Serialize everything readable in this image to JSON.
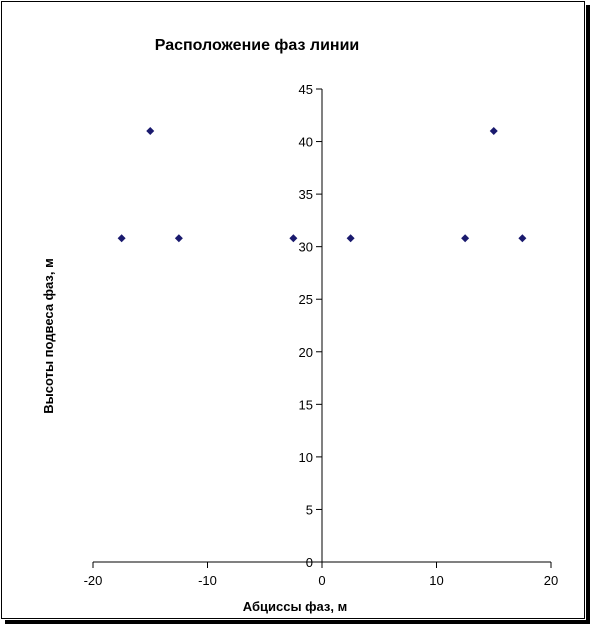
{
  "chart_data": {
    "type": "scatter",
    "title": "Расположение фаз линии",
    "xlabel": "Абциссы фаз, м",
    "ylabel": "Высоты подвеса фаз, м",
    "xlim": [
      -20,
      20
    ],
    "ylim": [
      0,
      45
    ],
    "xticks": [
      -20,
      -10,
      0,
      10,
      20
    ],
    "yticks": [
      0,
      5,
      10,
      15,
      20,
      25,
      30,
      35,
      40,
      45
    ],
    "series": [
      {
        "x": [
          -17.5,
          -15,
          -12.5,
          -2.5,
          2.5,
          12.5,
          15,
          17.5
        ],
        "y": [
          30.8,
          41,
          30.8,
          30.8,
          30.8,
          30.8,
          41,
          30.8
        ],
        "marker": "diamond",
        "color": "#1a1a6e"
      }
    ],
    "grid": false,
    "legend": "none"
  }
}
